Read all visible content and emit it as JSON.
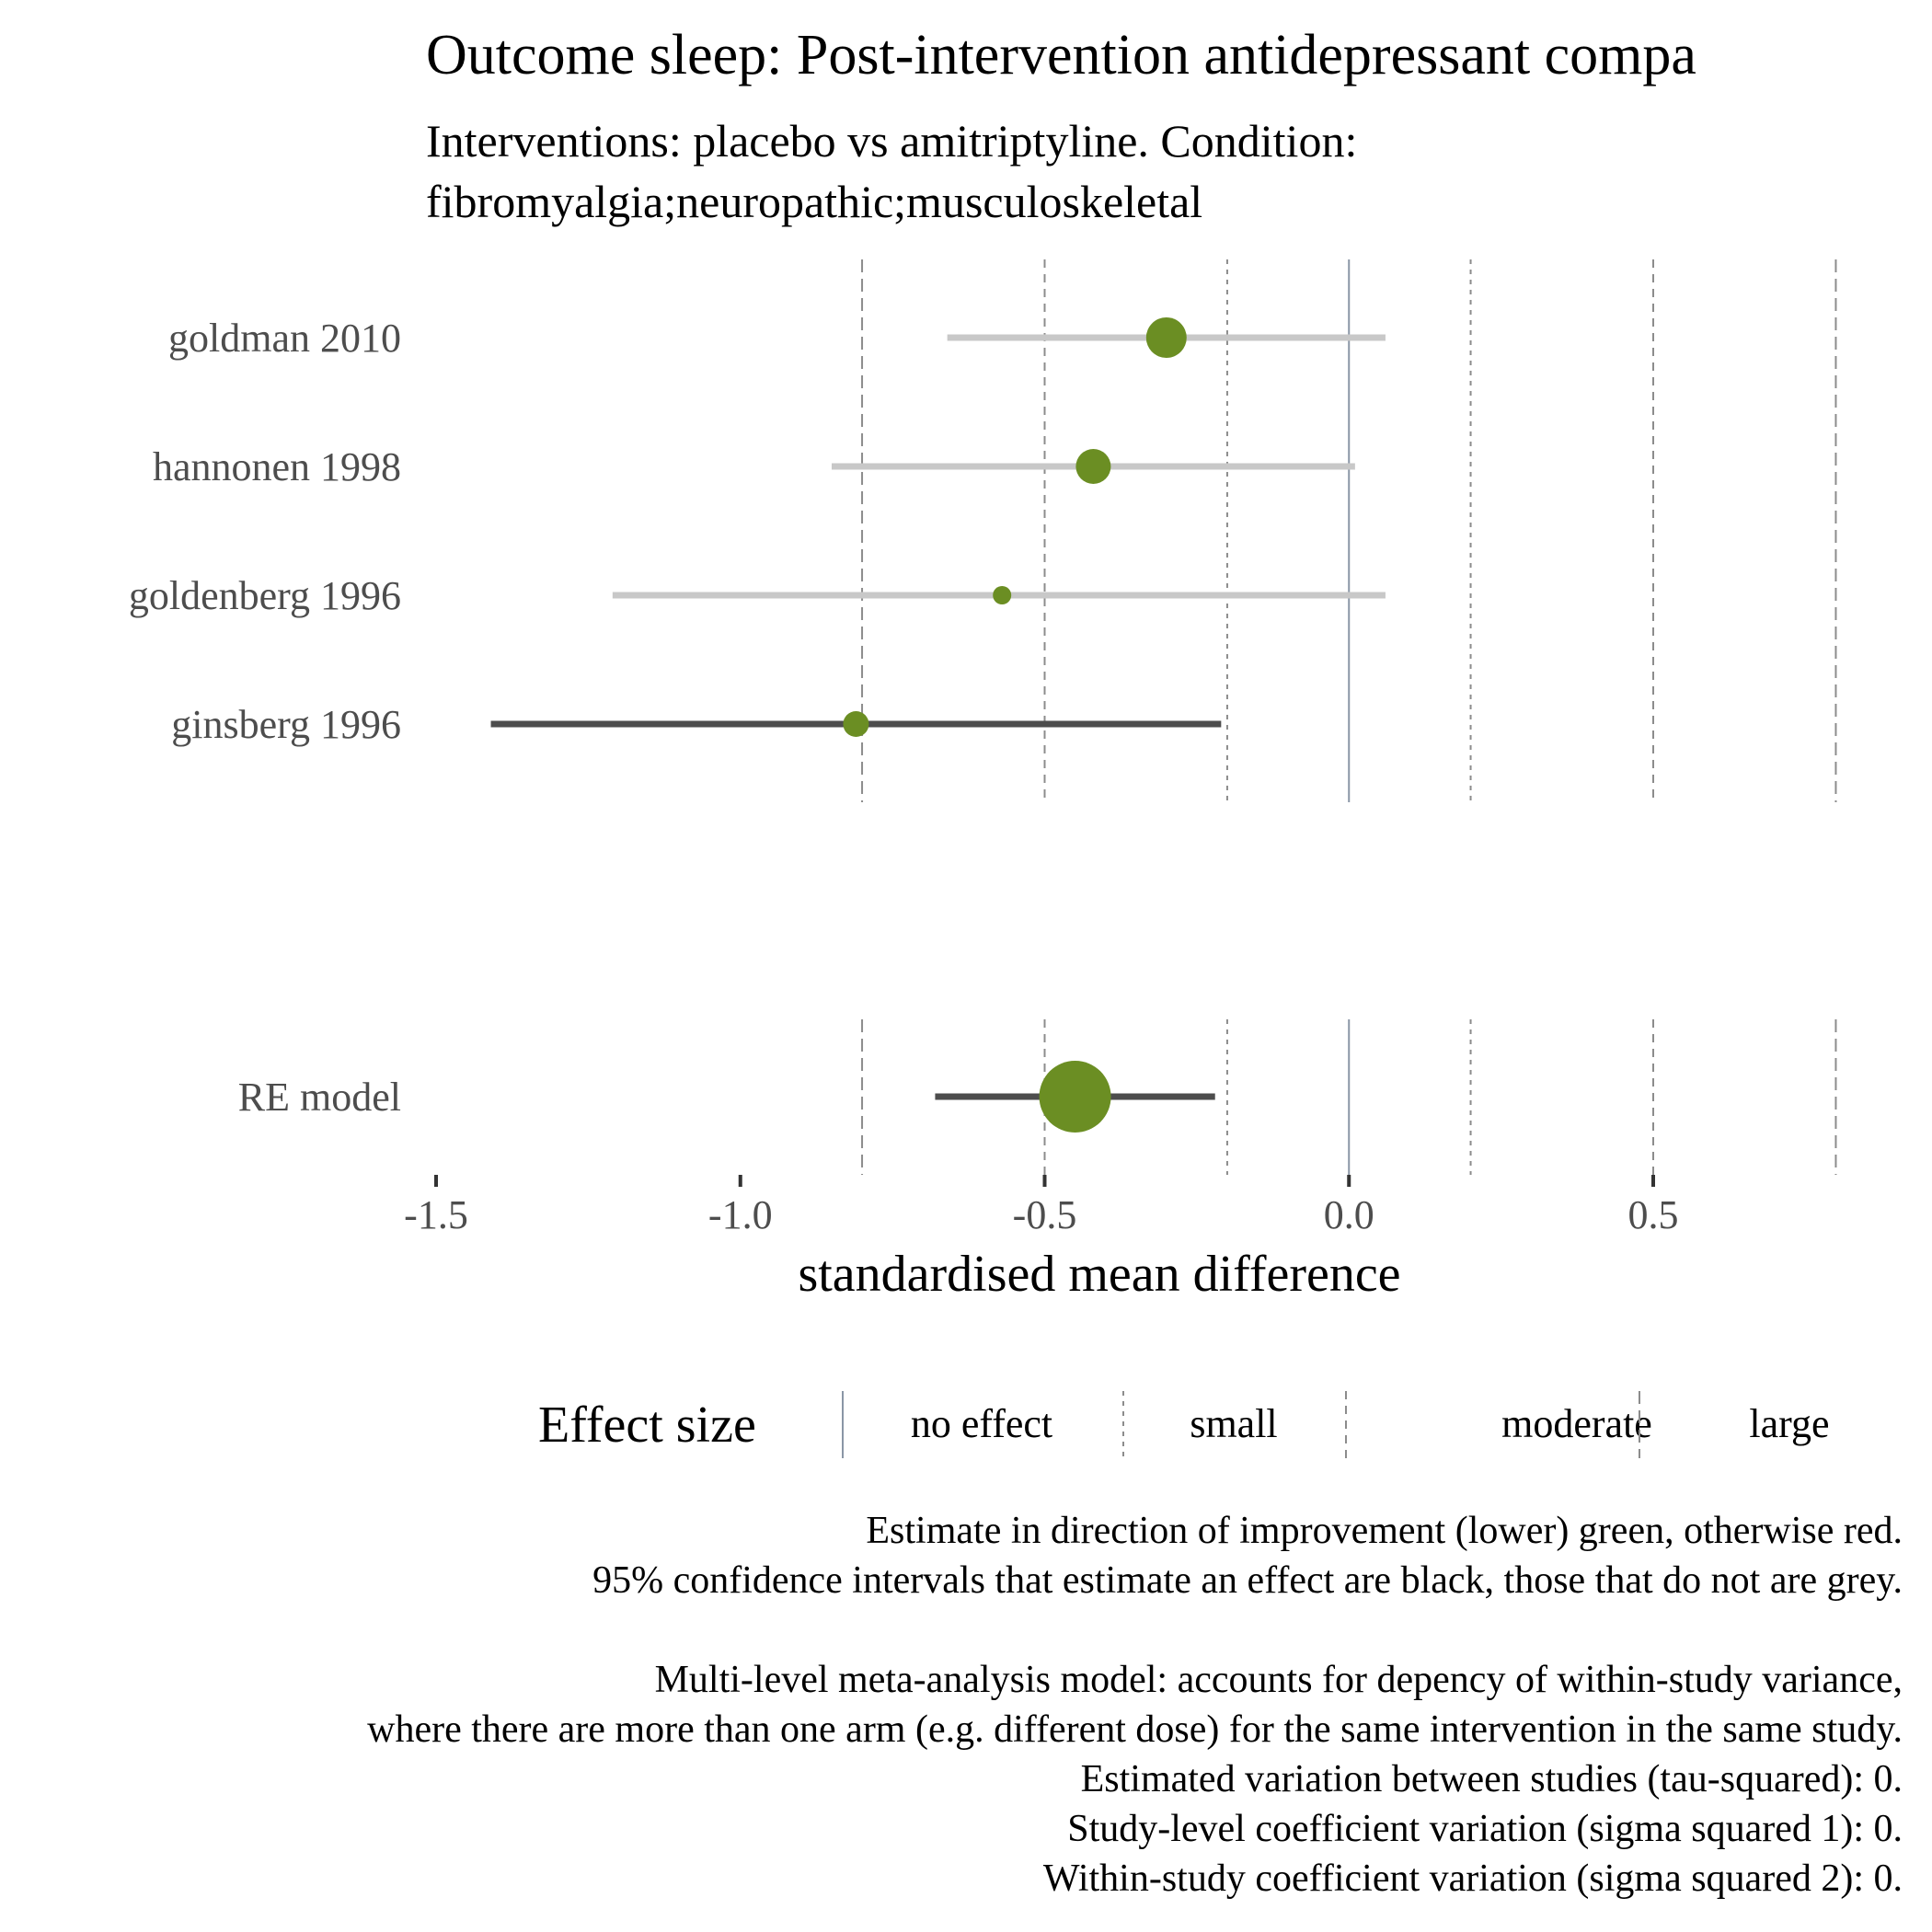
{
  "colors": {
    "improvement": "#6b8e23",
    "ci_effect": "#4d4d4d",
    "ci_no_effect": "#c8c8c8",
    "zero_line": "#8a96a6",
    "ref_line": "#8c8c8c",
    "axis_text": "#4d4d4d"
  },
  "chart_data": {
    "type": "forest",
    "title": "Outcome sleep: Post-intervention antidepressant compa",
    "subtitle_lines": [
      "Interventions: placebo vs amitriptyline. Condition:",
      "fibromyalgia;neuropathic;musculoskeletal"
    ],
    "xlabel": "standardised mean difference",
    "xlim": [
      -1.5,
      0.8
    ],
    "x_ticks": [
      -1.5,
      -1.0,
      -0.5,
      0.0,
      0.5
    ],
    "x_tick_labels": [
      "-1.5",
      "-1.0",
      "-0.5",
      "0.0",
      "0.5"
    ],
    "reference_lines": [
      {
        "value": 0.0,
        "category": "no effect"
      },
      {
        "value": -0.2,
        "category": "small"
      },
      {
        "value": 0.2,
        "category": "small"
      },
      {
        "value": -0.5,
        "category": "moderate"
      },
      {
        "value": 0.5,
        "category": "moderate"
      },
      {
        "value": -0.8,
        "category": "large"
      },
      {
        "value": 0.8,
        "category": "large"
      }
    ],
    "studies": [
      {
        "label": "goldman 2010",
        "estimate": -0.3,
        "ci_lower": -0.66,
        "ci_upper": 0.06,
        "ci_estimates_effect": false,
        "weight": 0.75
      },
      {
        "label": "hannonen 1998",
        "estimate": -0.42,
        "ci_lower": -0.85,
        "ci_upper": 0.01,
        "ci_estimates_effect": false,
        "weight": 0.6
      },
      {
        "label": "goldenberg 1996",
        "estimate": -0.57,
        "ci_lower": -1.21,
        "ci_upper": 0.06,
        "ci_estimates_effect": false,
        "weight": 0.15
      },
      {
        "label": "ginsberg 1996",
        "estimate": -0.81,
        "ci_lower": -1.41,
        "ci_upper": -0.21,
        "ci_estimates_effect": true,
        "weight": 0.35
      }
    ],
    "model": {
      "label": "RE model",
      "estimate": -0.45,
      "ci_lower": -0.68,
      "ci_upper": -0.22,
      "ci_estimates_effect": true
    },
    "legend": {
      "title": "Effect size",
      "items": [
        {
          "label": "no effect",
          "line": "solid"
        },
        {
          "label": "small",
          "line": "dotted"
        },
        {
          "label": "moderate",
          "line": "dashed"
        },
        {
          "label": "large",
          "line": "longdash"
        }
      ],
      "position": "bottom"
    },
    "caption_lines": [
      "Estimate in direction of improvement (lower) green, otherwise red.",
      "95% confidence intervals that estimate an effect are black, those that do not are grey.",
      "",
      "Multi-level meta-analysis model: accounts for depency of within-study variance,",
      "where there are more than one arm (e.g. different dose) for the same intervention in the same study.",
      "Estimated variation between studies (tau-squared): 0.",
      "Study-level coefficient variation (sigma squared 1): 0.",
      "Within-study coefficient variation (sigma squared 2): 0."
    ]
  }
}
